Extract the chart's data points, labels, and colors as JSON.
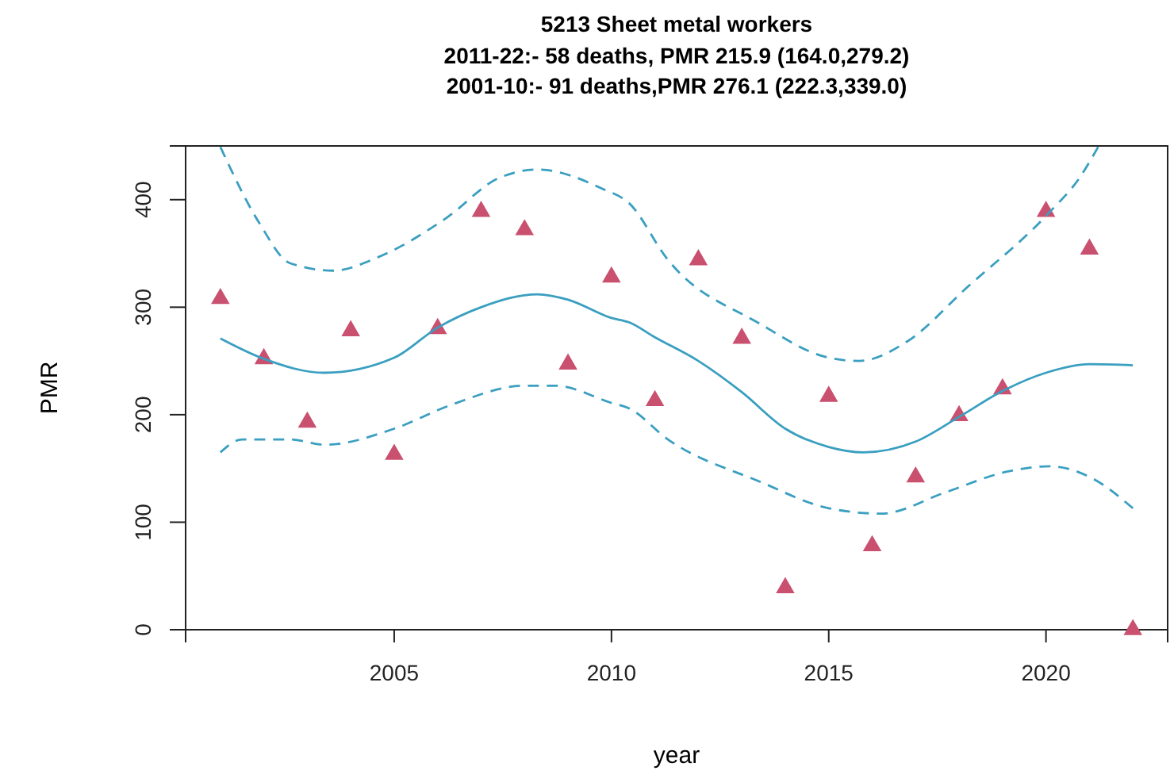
{
  "chart_data": {
    "type": "scatter",
    "title": "5213 Sheet metal workers",
    "subtitle": "2011-22:- 58 deaths, PMR 215.9 (164.0,279.2)\n2001-10:- 91 deaths,PMR 276.1 (222.3,339.0)",
    "xlabel": "year",
    "ylabel": "PMR",
    "xlim": [
      2000.2,
      2022.8
    ],
    "ylim": [
      0,
      450
    ],
    "xticks": [
      2005,
      2010,
      2015,
      2020
    ],
    "yticks": [
      0,
      100,
      200,
      300,
      400
    ],
    "grid": false,
    "series": [
      {
        "marker": "triangle",
        "color": "#c9506f",
        "x": [
          2001,
          2002,
          2003,
          2004,
          2005,
          2006,
          2007,
          2008,
          2009,
          2010,
          2011,
          2012,
          2013,
          2014,
          2015,
          2016,
          2017,
          2018,
          2019,
          2020,
          2021,
          2022
        ],
        "values": [
          308,
          252,
          193,
          278,
          163,
          280,
          389,
          372,
          247,
          328,
          213,
          344,
          271,
          39,
          217,
          78,
          142,
          199,
          224,
          389,
          354,
          0
        ]
      },
      {
        "type": "line",
        "marker": "none",
        "line_style": "solid",
        "color": "#3a9fc0",
        "x": [
          2001,
          2002,
          2003.4,
          2005,
          2006,
          2007,
          2008.3,
          2009,
          2010,
          2010.4,
          2011,
          2012,
          2013,
          2014,
          2015,
          2015.8,
          2017,
          2018,
          2019,
          2020,
          2021,
          2022
        ],
        "values": [
          271,
          252,
          239,
          253,
          281,
          300,
          312,
          307,
          290,
          286,
          272,
          250,
          221,
          187,
          170,
          165,
          175,
          198,
          222,
          239,
          247,
          246
        ]
      },
      {
        "type": "line",
        "marker": "none",
        "line_style": "dashed",
        "color": "#3a9fc0",
        "x": [
          2001,
          2001.9,
          2002.6,
          2003.6,
          2004.6,
          2006.2,
          2007.4,
          2008.3,
          2009.8,
          2010.4,
          2011.3,
          2013.4,
          2015,
          2015.7,
          2016.8,
          2018.2,
          2020,
          2020.8,
          2021.2
        ],
        "values": [
          449,
          378,
          341,
          334,
          346,
          383,
          420,
          428,
          410,
          397,
          344,
          285,
          253,
          250,
          268,
          319,
          385,
          422,
          449
        ]
      },
      {
        "type": "line",
        "marker": "none",
        "line_style": "dashed",
        "color": "#3a9fc0",
        "x": [
          2001,
          2001.5,
          2002.6,
          2003.4,
          2005,
          2006.3,
          2008,
          2008.7,
          2010,
          2010.4,
          2011.3,
          2013.4,
          2015,
          2016.2,
          2017.7,
          2019.1,
          2020.1,
          2021.1,
          2022
        ],
        "values": [
          165,
          177,
          177,
          172,
          187,
          209,
          227,
          227,
          211,
          206,
          177,
          138,
          113,
          108,
          128,
          147,
          152,
          140,
          113
        ]
      }
    ]
  }
}
